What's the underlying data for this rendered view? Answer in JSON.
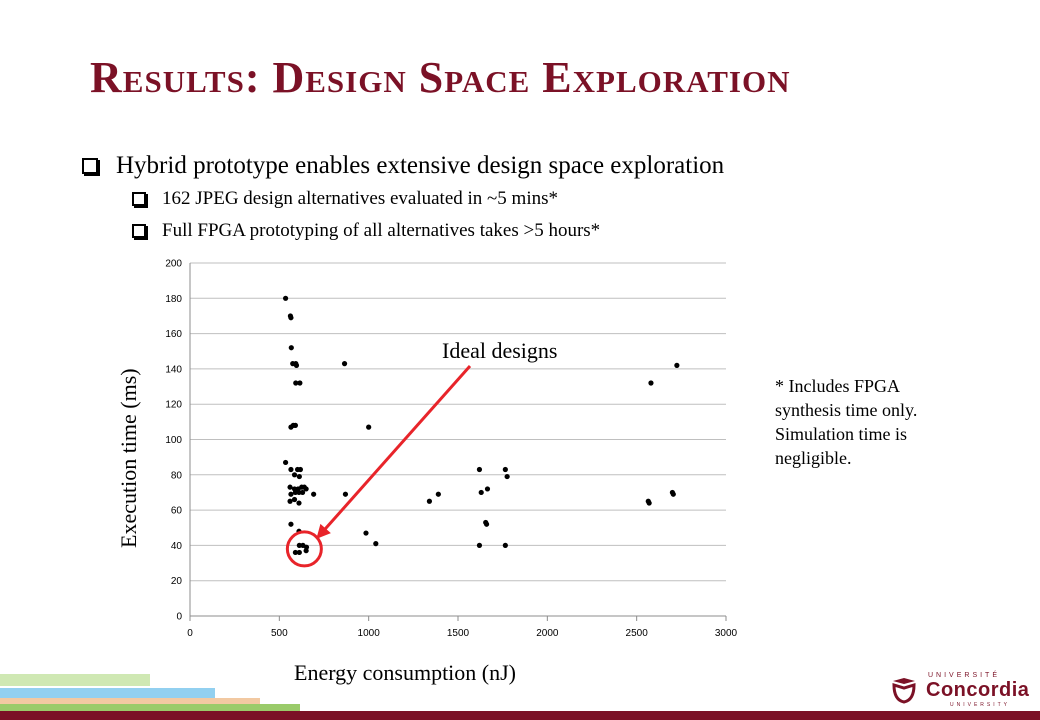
{
  "slide": {
    "title": "Results: Design Space Exploration",
    "bullets": [
      "Hybrid prototype enables extensive design space exploration",
      "162 JPEG design alternatives evaluated in ~5 mins*",
      "Full FPGA prototyping of all alternatives takes >5 hours*"
    ],
    "footnote": "* Includes FPGA\nsynthesis time only.\nSimulation time is\nnegligible.",
    "annotation": "Ideal designs",
    "logo": {
      "top": "UNIVERSITÉ",
      "name": "Concordia",
      "bottom": "UNIVERSITY"
    },
    "colors": {
      "accent": "#7b1126",
      "annotation": "#e8242a"
    }
  },
  "chart_data": {
    "type": "scatter",
    "xlabel": "Energy consumption (nJ)",
    "ylabel": "Execution time (ms)",
    "xlim": [
      0,
      3000
    ],
    "ylim": [
      0,
      200
    ],
    "xticks": [
      "0",
      "500",
      "1000",
      "1500",
      "2000",
      "2500",
      "3000"
    ],
    "yticks": [
      "0",
      "20",
      "40",
      "60",
      "80",
      "100",
      "120",
      "140",
      "160",
      "180",
      "200"
    ],
    "grid": "horizontal",
    "legend": "none",
    "points": [
      [
        535,
        180
      ],
      [
        562,
        170
      ],
      [
        565,
        169
      ],
      [
        567,
        152
      ],
      [
        575,
        143
      ],
      [
        592,
        143
      ],
      [
        596,
        142
      ],
      [
        592,
        132
      ],
      [
        615,
        132
      ],
      [
        565,
        107
      ],
      [
        578,
        108
      ],
      [
        590,
        108
      ],
      [
        535,
        87
      ],
      [
        565,
        83
      ],
      [
        585,
        80
      ],
      [
        602,
        83
      ],
      [
        618,
        83
      ],
      [
        612,
        79
      ],
      [
        560,
        73
      ],
      [
        585,
        72
      ],
      [
        605,
        72
      ],
      [
        625,
        73
      ],
      [
        640,
        73
      ],
      [
        650,
        72
      ],
      [
        565,
        69
      ],
      [
        590,
        70
      ],
      [
        610,
        70
      ],
      [
        630,
        70
      ],
      [
        692,
        69
      ],
      [
        560,
        65
      ],
      [
        585,
        66
      ],
      [
        610,
        64
      ],
      [
        565,
        52
      ],
      [
        610,
        48
      ],
      [
        612,
        40
      ],
      [
        632,
        40
      ],
      [
        652,
        39
      ],
      [
        590,
        36
      ],
      [
        612,
        36
      ],
      [
        650,
        37
      ],
      [
        865,
        143
      ],
      [
        1000,
        107
      ],
      [
        870,
        69
      ],
      [
        985,
        47
      ],
      [
        1040,
        41
      ],
      [
        1340,
        65
      ],
      [
        1390,
        69
      ],
      [
        1620,
        83
      ],
      [
        1630,
        70
      ],
      [
        1665,
        72
      ],
      [
        1655,
        53
      ],
      [
        1660,
        52
      ],
      [
        1620,
        40
      ],
      [
        1765,
        83
      ],
      [
        1775,
        79
      ],
      [
        1765,
        40
      ],
      [
        2570,
        64
      ],
      [
        2565,
        65
      ],
      [
        2580,
        132
      ],
      [
        2705,
        69
      ],
      [
        2700,
        70
      ],
      [
        2725,
        142
      ]
    ],
    "highlight": {
      "label": "Ideal designs",
      "circle_center": [
        640,
        38
      ],
      "arrow_from_label": true
    }
  }
}
